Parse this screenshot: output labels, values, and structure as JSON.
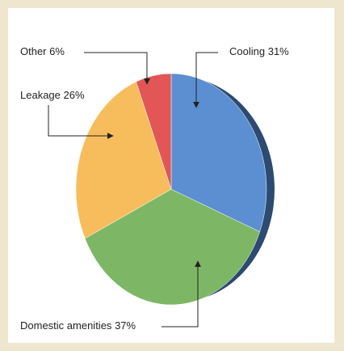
{
  "chart_data": {
    "type": "pie",
    "categories": [
      "Cooling",
      "Domestic amenities",
      "Leakage",
      "Other"
    ],
    "values": [
      31,
      37,
      26,
      6
    ],
    "value_labels": [
      "31%",
      "37%",
      "26%",
      "6%"
    ],
    "colors": [
      "#5b8fd1",
      "#7db765",
      "#f7bd5c",
      "#e25656"
    ]
  }
}
